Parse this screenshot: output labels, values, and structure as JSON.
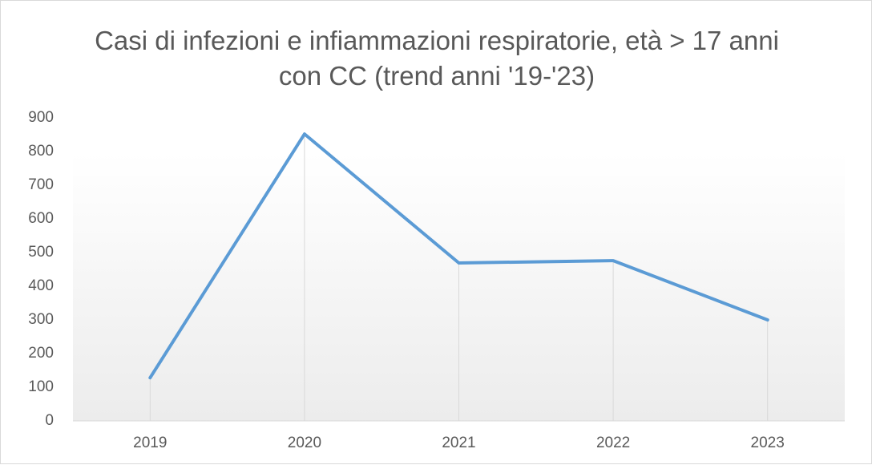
{
  "chart_data": {
    "type": "line",
    "title": "Casi di infezioni e infiammazioni respiratorie, età > 17 anni con CC (trend anni '19-'23)",
    "categories": [
      "2019",
      "2020",
      "2021",
      "2022",
      "2023"
    ],
    "values": [
      128,
      852,
      469,
      476,
      300
    ],
    "color": "#5b9bd5",
    "ylim": [
      0,
      900
    ],
    "yticks": [
      0,
      100,
      200,
      300,
      400,
      500,
      600,
      700,
      800,
      900
    ],
    "drop_lines": true
  }
}
